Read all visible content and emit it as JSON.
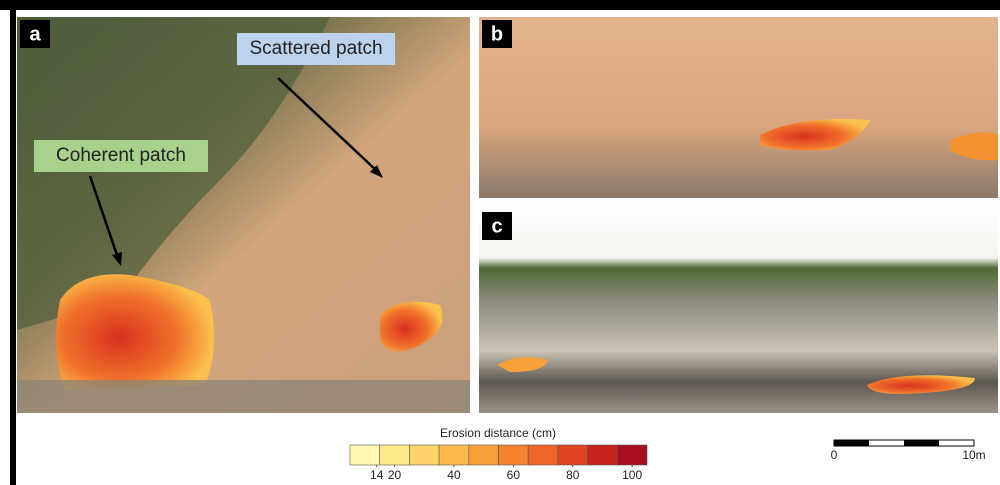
{
  "panels": [
    {
      "label": "a",
      "annotations": [
        "Scattered patch",
        "Coherent patch"
      ]
    },
    {
      "label": "b"
    },
    {
      "label": "c"
    }
  ],
  "colorbar": {
    "title": "Erosion distance (cm)",
    "colors": [
      "#fff8b0",
      "#fde98a",
      "#fdd46a",
      "#fdbb4e",
      "#fb9f3a",
      "#f7822f",
      "#f06428",
      "#e04322",
      "#c8241f",
      "#a80d22"
    ],
    "lim": [
      5,
      105
    ],
    "ticks": [
      14,
      20,
      40,
      60,
      80,
      100
    ]
  },
  "scale_bar": {
    "labels": [
      "0",
      "10m"
    ]
  }
}
